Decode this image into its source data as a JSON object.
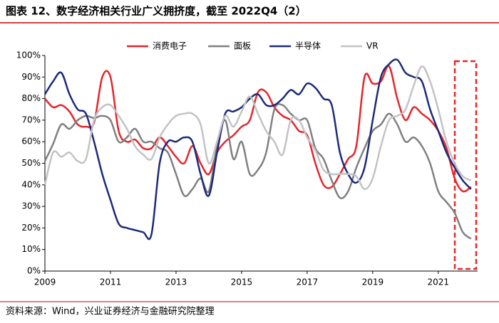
{
  "chart_data": {
    "type": "line",
    "title": "图表 12、数字经济相关行业广义拥挤度，截至 2022Q4（2）",
    "source": "资料来源：Wind，兴业证券经济与金融研究院整理",
    "x": [
      2009,
      2009.25,
      2009.5,
      2009.75,
      2010,
      2010.25,
      2010.5,
      2010.75,
      2011,
      2011.25,
      2011.5,
      2011.75,
      2012,
      2012.25,
      2012.5,
      2012.75,
      2013,
      2013.25,
      2013.5,
      2013.75,
      2014,
      2014.25,
      2014.5,
      2014.75,
      2015,
      2015.25,
      2015.5,
      2015.75,
      2016,
      2016.25,
      2016.5,
      2016.75,
      2017,
      2017.25,
      2017.5,
      2017.75,
      2018,
      2018.25,
      2018.5,
      2018.75,
      2019,
      2019.25,
      2019.5,
      2019.75,
      2020,
      2020.25,
      2020.5,
      2020.75,
      2021,
      2021.25,
      2021.5,
      2021.75,
      2022
    ],
    "series": [
      {
        "name": "消费电子",
        "color": "#e5262b",
        "values": [
          80,
          76,
          77,
          74,
          68,
          67,
          69,
          90,
          90,
          65,
          60,
          61,
          57,
          57,
          62,
          58,
          53,
          50,
          58,
          50,
          45,
          55,
          60,
          63,
          67,
          70,
          83,
          83,
          76,
          72,
          70,
          65,
          63,
          50,
          40,
          39,
          45,
          52,
          58,
          90,
          87,
          88,
          95,
          80,
          70,
          76,
          73,
          70,
          65,
          57,
          43,
          37,
          39
        ]
      },
      {
        "name": "面板",
        "color": "#808080",
        "values": [
          51,
          59,
          68,
          66,
          70,
          72,
          71,
          72,
          70,
          60,
          62,
          66,
          60,
          60,
          57,
          55,
          45,
          35,
          38,
          43,
          37,
          58,
          70,
          52,
          60,
          45,
          47,
          55,
          75,
          77,
          73,
          70,
          70,
          57,
          52,
          42,
          34,
          37,
          48,
          57,
          65,
          68,
          73,
          68,
          60,
          62,
          58,
          50,
          37,
          32,
          27,
          18,
          15
        ]
      },
      {
        "name": "半导体",
        "color": "#1d2a78",
        "values": [
          82,
          88,
          92,
          82,
          75,
          73,
          60,
          45,
          33,
          22,
          20,
          19,
          18,
          17,
          50,
          60,
          60,
          62,
          60,
          45,
          35,
          55,
          73,
          74,
          76,
          80,
          82,
          77,
          77,
          80,
          84,
          82,
          87,
          85,
          80,
          77,
          55,
          45,
          41,
          48,
          70,
          90,
          96,
          98,
          92,
          90,
          88,
          75,
          65,
          55,
          48,
          42,
          38
        ]
      },
      {
        "name": "VR",
        "color": "#c3c3c3",
        "values": [
          40,
          55,
          53,
          55,
          51,
          52,
          70,
          76,
          77,
          72,
          66,
          58,
          54,
          52,
          62,
          68,
          72,
          73,
          73,
          68,
          50,
          60,
          72,
          67,
          74,
          81,
          73,
          65,
          60,
          54,
          70,
          70,
          62,
          56,
          47,
          45,
          45,
          45,
          44,
          38,
          43,
          58,
          70,
          72,
          75,
          86,
          95,
          88,
          75,
          60,
          50,
          44,
          42
        ]
      }
    ],
    "xlim": [
      2009,
      2022.2
    ],
    "xticks": [
      2009,
      2011,
      2013,
      2015,
      2017,
      2019,
      2021
    ],
    "ylim": [
      0,
      100
    ],
    "yticks": [
      {
        "value": 0,
        "label": "0%"
      },
      {
        "value": 10,
        "label": "10%"
      },
      {
        "value": 20,
        "label": "20%"
      },
      {
        "value": 30,
        "label": "30%"
      },
      {
        "value": 40,
        "label": "40%"
      },
      {
        "value": 50,
        "label": "50%"
      },
      {
        "value": 60,
        "label": "60%"
      },
      {
        "value": 70,
        "label": "70%"
      },
      {
        "value": 80,
        "label": "80%"
      },
      {
        "value": 90,
        "label": "90%"
      },
      {
        "value": 100,
        "label": "100%"
      }
    ],
    "grid": false,
    "legend": "top"
  }
}
